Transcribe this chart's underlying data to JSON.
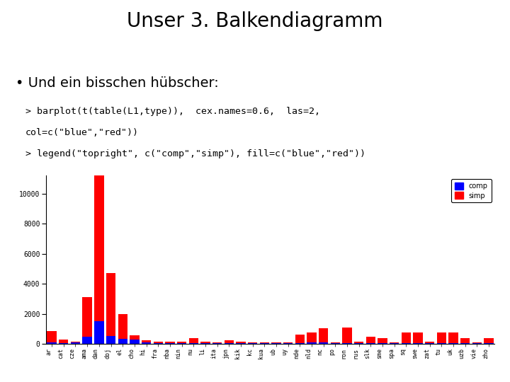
{
  "title": "Unser 3. Balkendiagramm",
  "bullet": "• Und ein bisschen hübscher:",
  "code_line1": "> barplot(t(table(L1,type)),  cex.names=0.6,  las=2,",
  "code_line2": "col=c(\"blue\",\"red\"))",
  "code_line3": "> legend(\"topright\", c(\"comp\",\"simp\"), fill=c(\"blue\",\"red\"))",
  "categories": [
    "ar",
    "cat",
    "cze",
    "ama",
    "dan",
    "doj",
    "el",
    "cho",
    "hi",
    "fra",
    "nba",
    "nin",
    "nu",
    "li",
    "ita",
    "jpn",
    "kik",
    "kc",
    "kua",
    "ub",
    "uy",
    "nde",
    "nld",
    "nc",
    "po",
    "ron",
    "rus",
    "slk",
    "sme",
    "spa",
    "sq",
    "swe",
    "zat",
    "tu",
    "uk",
    "uzb",
    "vie",
    "zho"
  ],
  "comp": [
    100,
    30,
    80,
    450,
    1500,
    500,
    350,
    280,
    100,
    60,
    60,
    60,
    40,
    40,
    40,
    60,
    60,
    40,
    40,
    40,
    40,
    40,
    80,
    100,
    40,
    40,
    60,
    40,
    40,
    40,
    40,
    40,
    40,
    40,
    40,
    40,
    40,
    40
  ],
  "simp": [
    750,
    250,
    60,
    2650,
    10500,
    4200,
    1650,
    270,
    130,
    100,
    60,
    60,
    320,
    100,
    60,
    180,
    60,
    60,
    60,
    60,
    60,
    580,
    670,
    920,
    60,
    1050,
    60,
    420,
    320,
    60,
    720,
    720,
    80,
    720,
    720,
    320,
    60,
    320
  ],
  "comp_color": "#0000ff",
  "simp_color": "#ff0000",
  "ylim": [
    0,
    11200
  ],
  "yticks": [
    0,
    2000,
    4000,
    6000,
    8000,
    10000
  ],
  "background_color": "#ffffff",
  "title_fontsize": 20,
  "bullet_fontsize": 14,
  "code_fontsize": 9.5,
  "axis_fontsize": 7,
  "tick_fontsize": 6
}
